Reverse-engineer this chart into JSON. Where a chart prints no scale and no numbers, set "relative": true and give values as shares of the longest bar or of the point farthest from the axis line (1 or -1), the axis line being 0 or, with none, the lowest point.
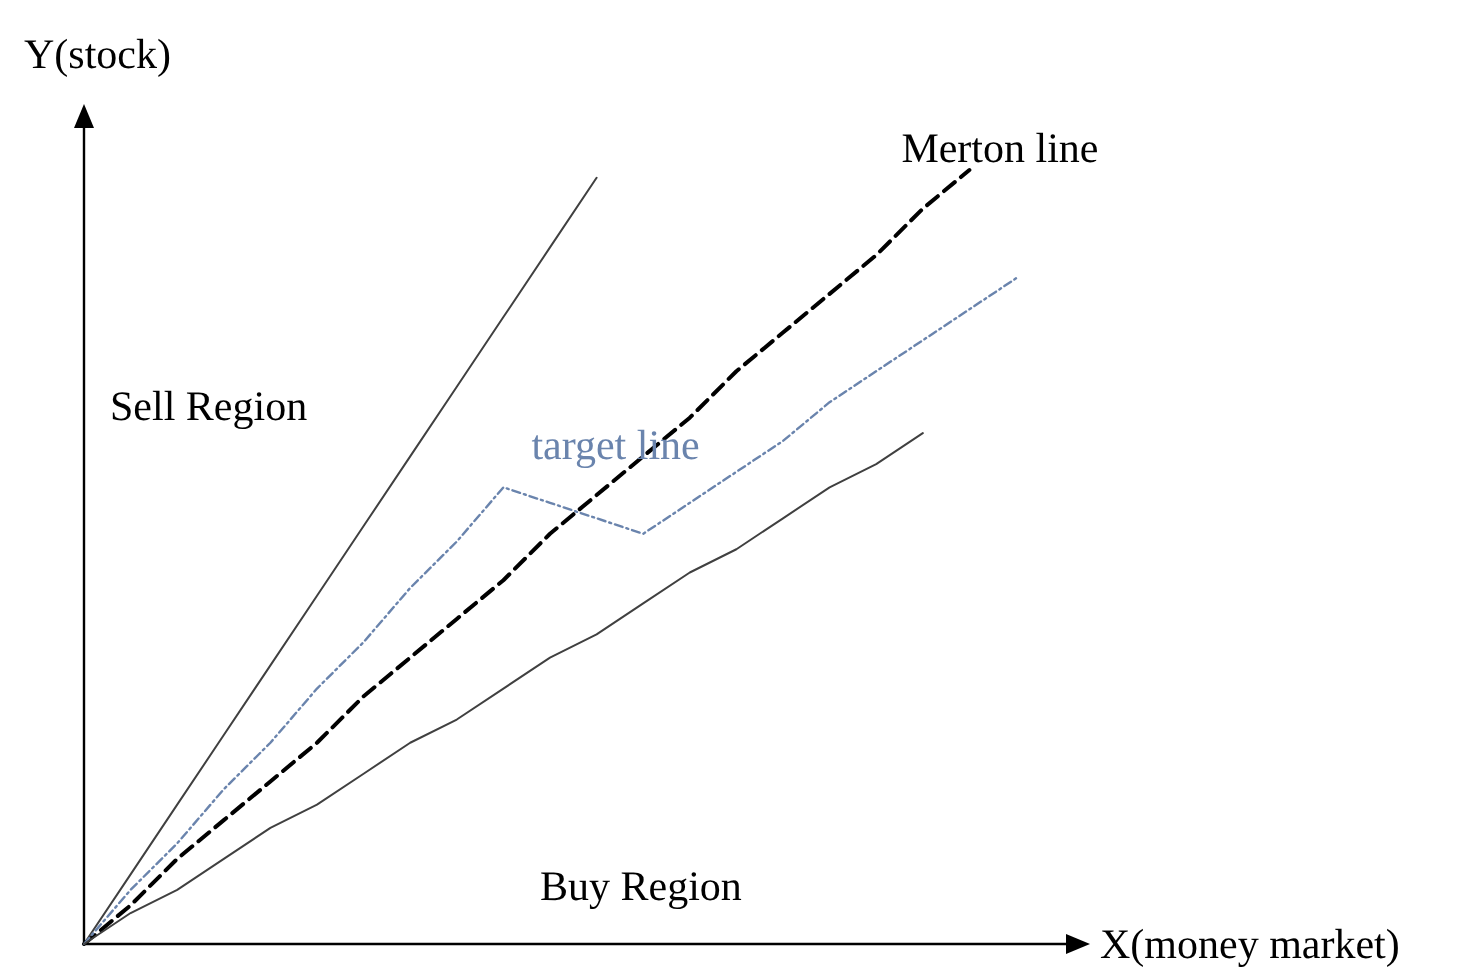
{
  "chart_data": {
    "type": "line",
    "relative": true,
    "xlabel": "X(money market)",
    "ylabel": "Y(stock)",
    "categories": [
      null,
      null,
      null,
      null,
      null,
      null,
      null,
      null,
      null,
      null,
      null,
      null,
      null,
      null,
      null,
      null,
      null,
      null,
      null,
      null,
      null
    ],
    "series": [
      {
        "color": "#404040",
        "line_style": "solid",
        "values": [
          0,
          0.09,
          0.18,
          0.27,
          0.36,
          0.45,
          0.54,
          0.63,
          0.72,
          0.81,
          0.9,
          0.99,
          null,
          null,
          null,
          null,
          null,
          null,
          null,
          null,
          null
        ]
      },
      {
        "name": "Merton line",
        "color": "#000000",
        "line_style": "dashed",
        "values": [
          0,
          0.05,
          0.11,
          0.16,
          0.21,
          0.26,
          0.32,
          0.37,
          0.42,
          0.47,
          0.53,
          0.58,
          0.63,
          0.68,
          0.74,
          0.79,
          0.84,
          0.89,
          0.95,
          1,
          null
        ]
      },
      {
        "name": "target line",
        "color": "#6a84ad",
        "line_style": "dotted",
        "values": [
          0,
          0.07,
          0.13,
          0.2,
          0.26,
          0.33,
          0.39,
          0.46,
          0.52,
          0.59,
          0.57,
          0.55,
          0.53,
          0.57,
          0.61,
          0.65,
          0.7,
          0.74,
          0.78,
          0.82,
          0.86
        ]
      },
      {
        "color": "#404040",
        "line_style": "solid",
        "values": [
          0,
          0.04,
          0.07,
          0.11,
          0.15,
          0.18,
          0.22,
          0.26,
          0.29,
          0.33,
          0.37,
          0.4,
          0.44,
          0.48,
          0.51,
          0.55,
          0.59,
          0.62,
          0.66,
          null,
          null
        ]
      }
    ],
    "annotations": [
      "Sell Region",
      "Buy Region"
    ]
  }
}
